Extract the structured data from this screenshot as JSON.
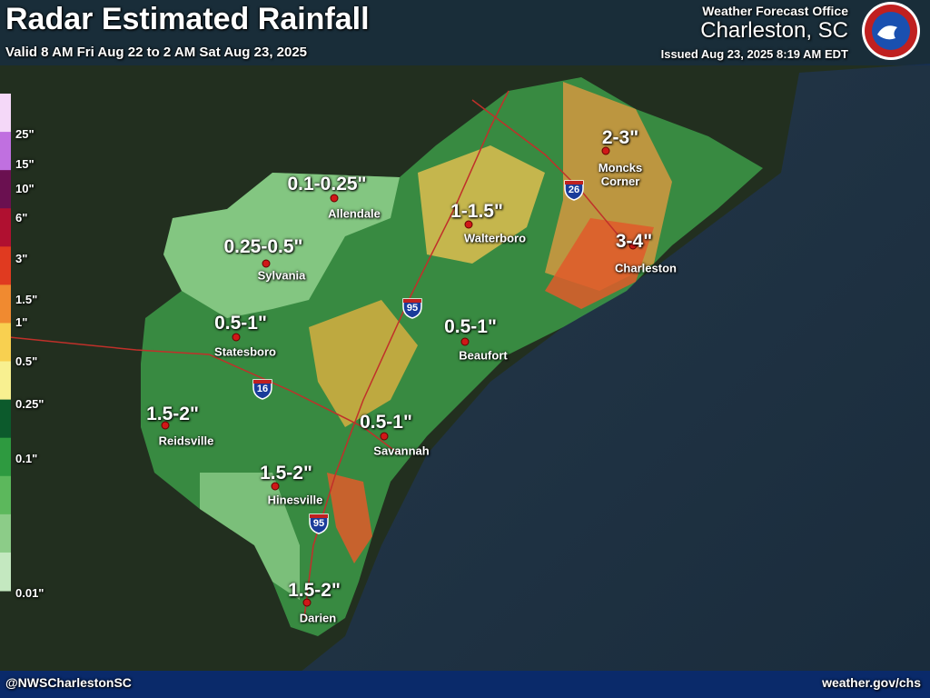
{
  "header": {
    "title": "Radar Estimated Rainfall",
    "subtitle": "Valid 8 AM Fri Aug 22 to 2 AM Sat Aug 23, 2025",
    "office": "Weather Forecast Office",
    "office_location": "Charleston, SC",
    "issued": "Issued Aug 23, 2025 8:19 AM EDT"
  },
  "legend": {
    "labels": [
      "25\"",
      "15\"",
      "10\"",
      "6\"",
      "3\"",
      "1.5\"",
      "1\"",
      "0.5\"",
      "0.25\"",
      "0.1\"",
      "0.01\""
    ],
    "colors": [
      "#f4d8f8",
      "#c070e0",
      "#6a1050",
      "#b01030",
      "#e03a20",
      "#f08a30",
      "#f8d050",
      "#f8f090",
      "#0c5a2c",
      "#2e9a40",
      "#5cb85c",
      "#8ccc88",
      "#c4e8c0"
    ]
  },
  "locations": [
    {
      "name": "Allendale",
      "amount": "0.1-0.25\""
    },
    {
      "name": "Sylvania",
      "amount": "0.25-0.5\""
    },
    {
      "name": "Statesboro",
      "amount": "0.5-1\""
    },
    {
      "name": "Reidsville",
      "amount": "1.5-2\""
    },
    {
      "name": "Hinesville",
      "amount": "1.5-2\""
    },
    {
      "name": "Darien",
      "amount": "1.5-2\""
    },
    {
      "name": "Savannah",
      "amount": "0.5-1\""
    },
    {
      "name": "Beaufort",
      "amount": "0.5-1\""
    },
    {
      "name": "Walterboro",
      "amount": "1-1.5\""
    },
    {
      "name": "Moncks Corner",
      "amount": "2-3\""
    },
    {
      "name": "Charleston",
      "amount": "3-4\""
    }
  ],
  "interstates": [
    "26",
    "95",
    "16",
    "95"
  ],
  "footer": {
    "handle": "@NWSCharlestonSC",
    "website": "weather.gov/chs"
  }
}
